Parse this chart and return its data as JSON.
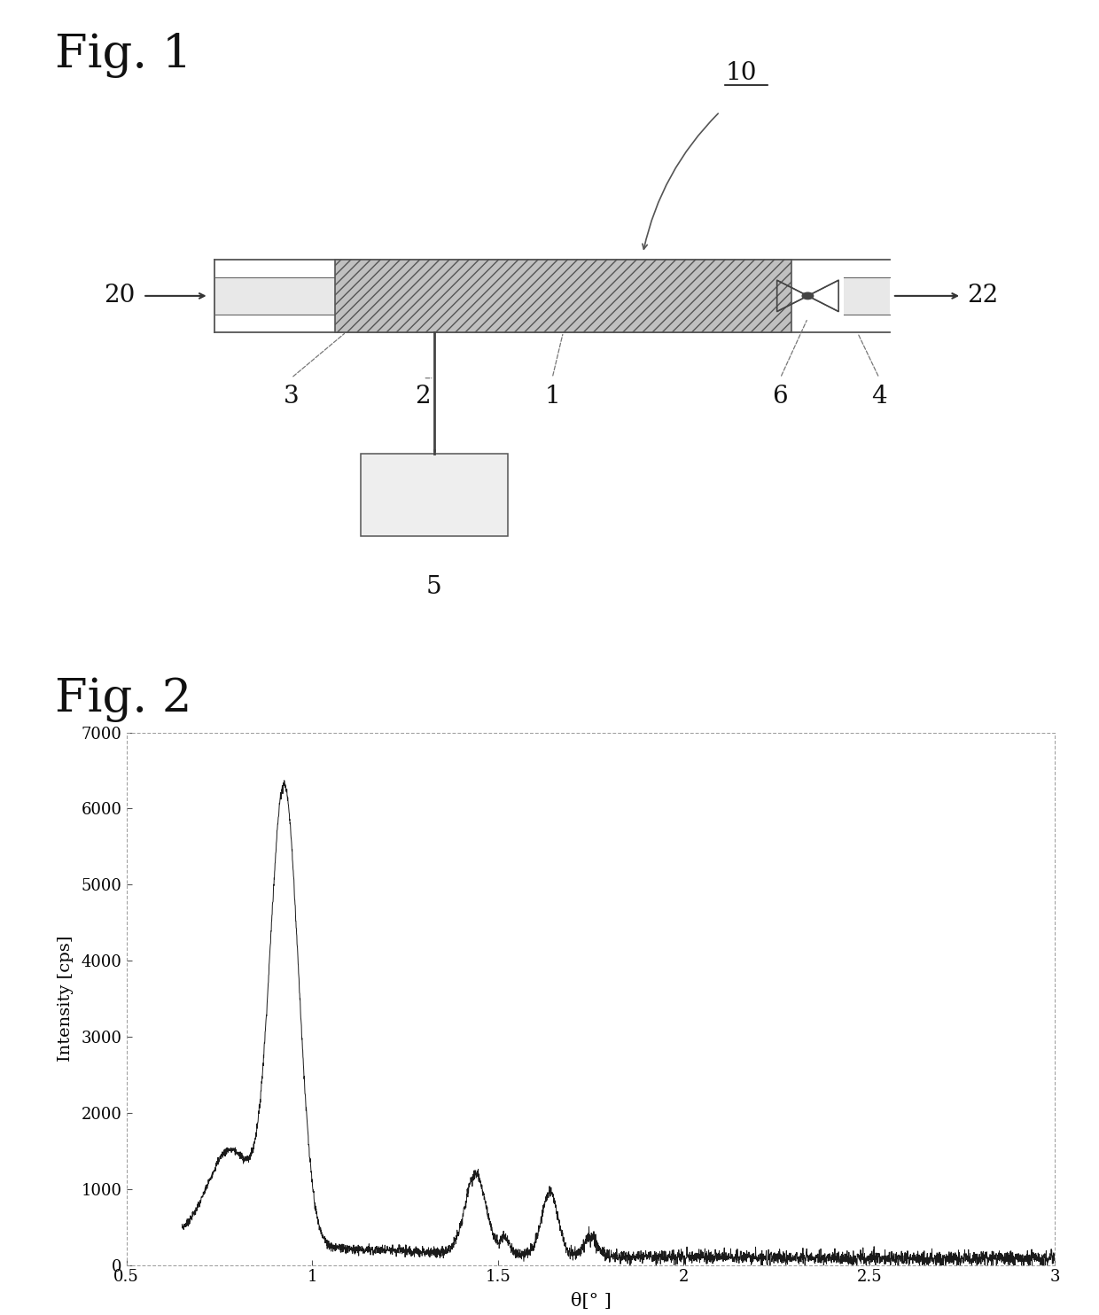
{
  "fig1_title": "Fig. 1",
  "fig2_title": "Fig. 2",
  "fig2_xlabel": "θ[° ]",
  "fig2_ylabel": "Intensity [cps]",
  "fig2_xlim": [
    0.5,
    3.0
  ],
  "fig2_ylim": [
    0,
    7000
  ],
  "fig2_xtick_labels": [
    "0.5",
    "1",
    "1.5",
    "2",
    "2.5",
    "3"
  ],
  "fig2_ytick_labels": [
    "0",
    "1000",
    "2000",
    "3000",
    "4000",
    "5000",
    "6000",
    "7000"
  ],
  "background_color": "#ffffff",
  "line_color": "#1a1a1a",
  "diagram_hatch_color": "#aaaaaa",
  "label_fontsize": 20,
  "title_fontsize": 38
}
